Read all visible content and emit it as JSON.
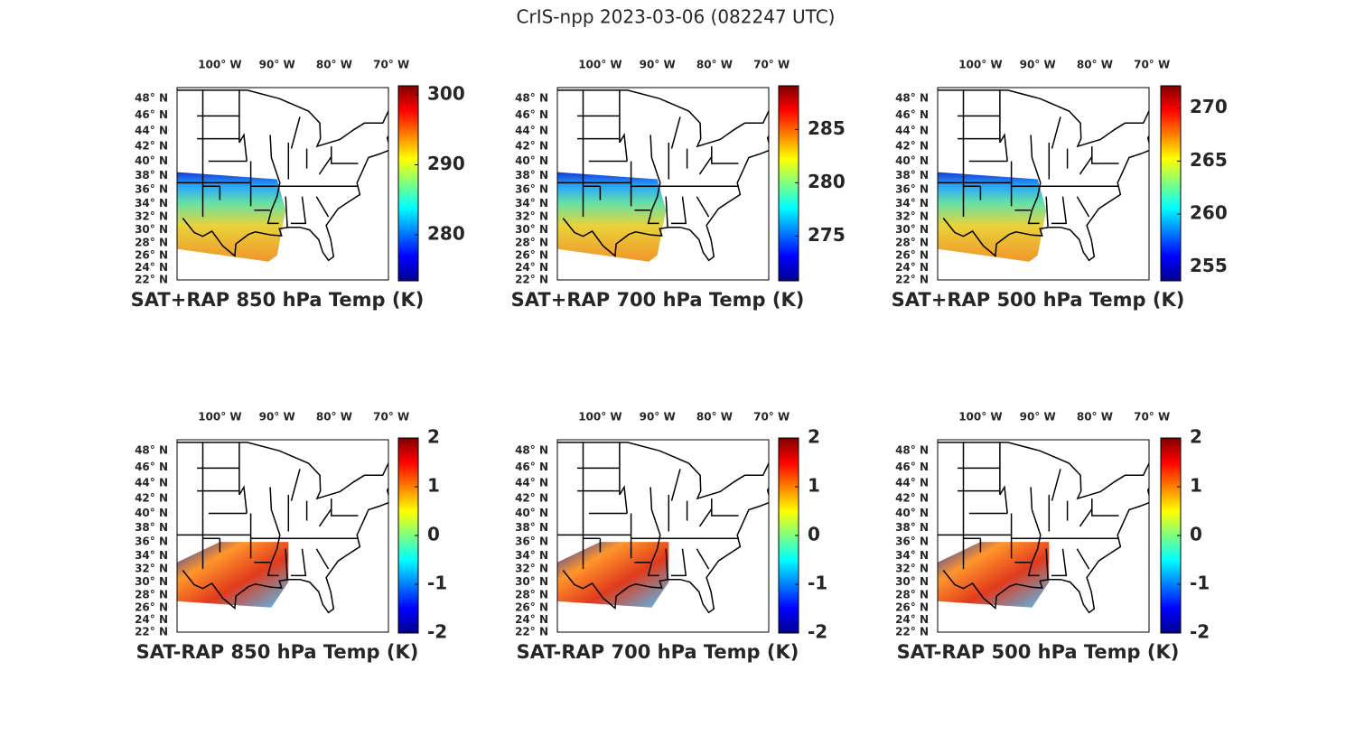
{
  "title": "CrIS-npp 2023-03-06 (082247 UTC)",
  "map": {
    "xlim": [
      -107.5,
      -70.5
    ],
    "ylim": [
      22,
      49.3
    ],
    "lon_ticks": [
      {
        "value": -100,
        "label": "100° W"
      },
      {
        "value": -90,
        "label": "90° W"
      },
      {
        "value": -80,
        "label": "80° W"
      },
      {
        "value": -70,
        "label": "70° W"
      }
    ],
    "lat_ticks": [
      {
        "value": 48,
        "label": "48° N"
      },
      {
        "value": 46,
        "label": "46° N"
      },
      {
        "value": 44,
        "label": "44° N"
      },
      {
        "value": 42,
        "label": "42° N"
      },
      {
        "value": 40,
        "label": "40° N"
      },
      {
        "value": 38,
        "label": "38° N"
      },
      {
        "value": 36,
        "label": "36° N"
      },
      {
        "value": 34,
        "label": "34° N"
      },
      {
        "value": 32,
        "label": "32° N"
      },
      {
        "value": 30,
        "label": "30° N"
      },
      {
        "value": 28,
        "label": "28° N"
      },
      {
        "value": 26,
        "label": "26° N"
      },
      {
        "value": 24,
        "label": "24° N"
      },
      {
        "value": 22,
        "label": "22° N"
      }
    ]
  },
  "panels": [
    {
      "title": "SAT+RAP 850 hPa Temp (K)",
      "clim": [
        273.4,
        301.3
      ],
      "cticks": [
        280,
        290,
        300
      ]
    },
    {
      "title": "SAT+RAP 700 hPa Temp (K)",
      "clim": [
        270.8,
        289.1
      ],
      "cticks": [
        275,
        280,
        285
      ]
    },
    {
      "title": "SAT+RAP 500 hPa Temp (K)",
      "clim": [
        253.7,
        272.1
      ],
      "cticks": [
        255,
        260,
        265,
        270
      ]
    },
    {
      "title": "SAT-RAP 850 hPa Temp (K)",
      "clim": [
        -2,
        2
      ],
      "cticks": [
        -2,
        -1,
        0,
        1,
        2
      ]
    },
    {
      "title": "SAT-RAP 700 hPa Temp (K)",
      "clim": [
        -2,
        2
      ],
      "cticks": [
        -2,
        -1,
        0,
        1,
        2
      ]
    },
    {
      "title": "SAT-RAP 500 hPa Temp (K)",
      "clim": [
        -2,
        2
      ],
      "cticks": [
        -2,
        -1,
        0,
        1,
        2
      ]
    }
  ]
}
